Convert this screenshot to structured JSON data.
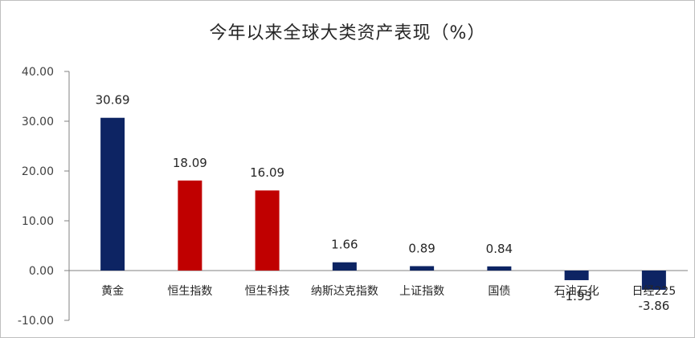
{
  "chart_data": {
    "type": "bar",
    "title": "今年以来全球大类资产表现（%）",
    "xlabel": "",
    "ylabel": "",
    "categories": [
      "黄金",
      "恒生指数",
      "恒生科技",
      "纳斯达克指数",
      "上证指数",
      "国债",
      "石油石化",
      "日经225"
    ],
    "values": [
      30.69,
      18.09,
      16.09,
      1.66,
      0.89,
      0.84,
      -1.93,
      -3.86
    ],
    "value_labels": [
      "30.69",
      "18.09",
      "16.09",
      "1.66",
      "0.89",
      "0.84",
      "-1.93",
      "-3.86"
    ],
    "bar_colors": [
      "#0d2463",
      "#c00000",
      "#c00000",
      "#0d2463",
      "#0d2463",
      "#0d2463",
      "#0d2463",
      "#0d2463"
    ],
    "yticks": [
      40,
      30,
      20,
      10,
      0,
      -10
    ],
    "ytick_labels": [
      "40.00",
      "30.00",
      "20.00",
      "10.00",
      "0.00",
      "-10.00"
    ],
    "ylim": [
      -10,
      40
    ],
    "grid": false,
    "legend": "none"
  }
}
